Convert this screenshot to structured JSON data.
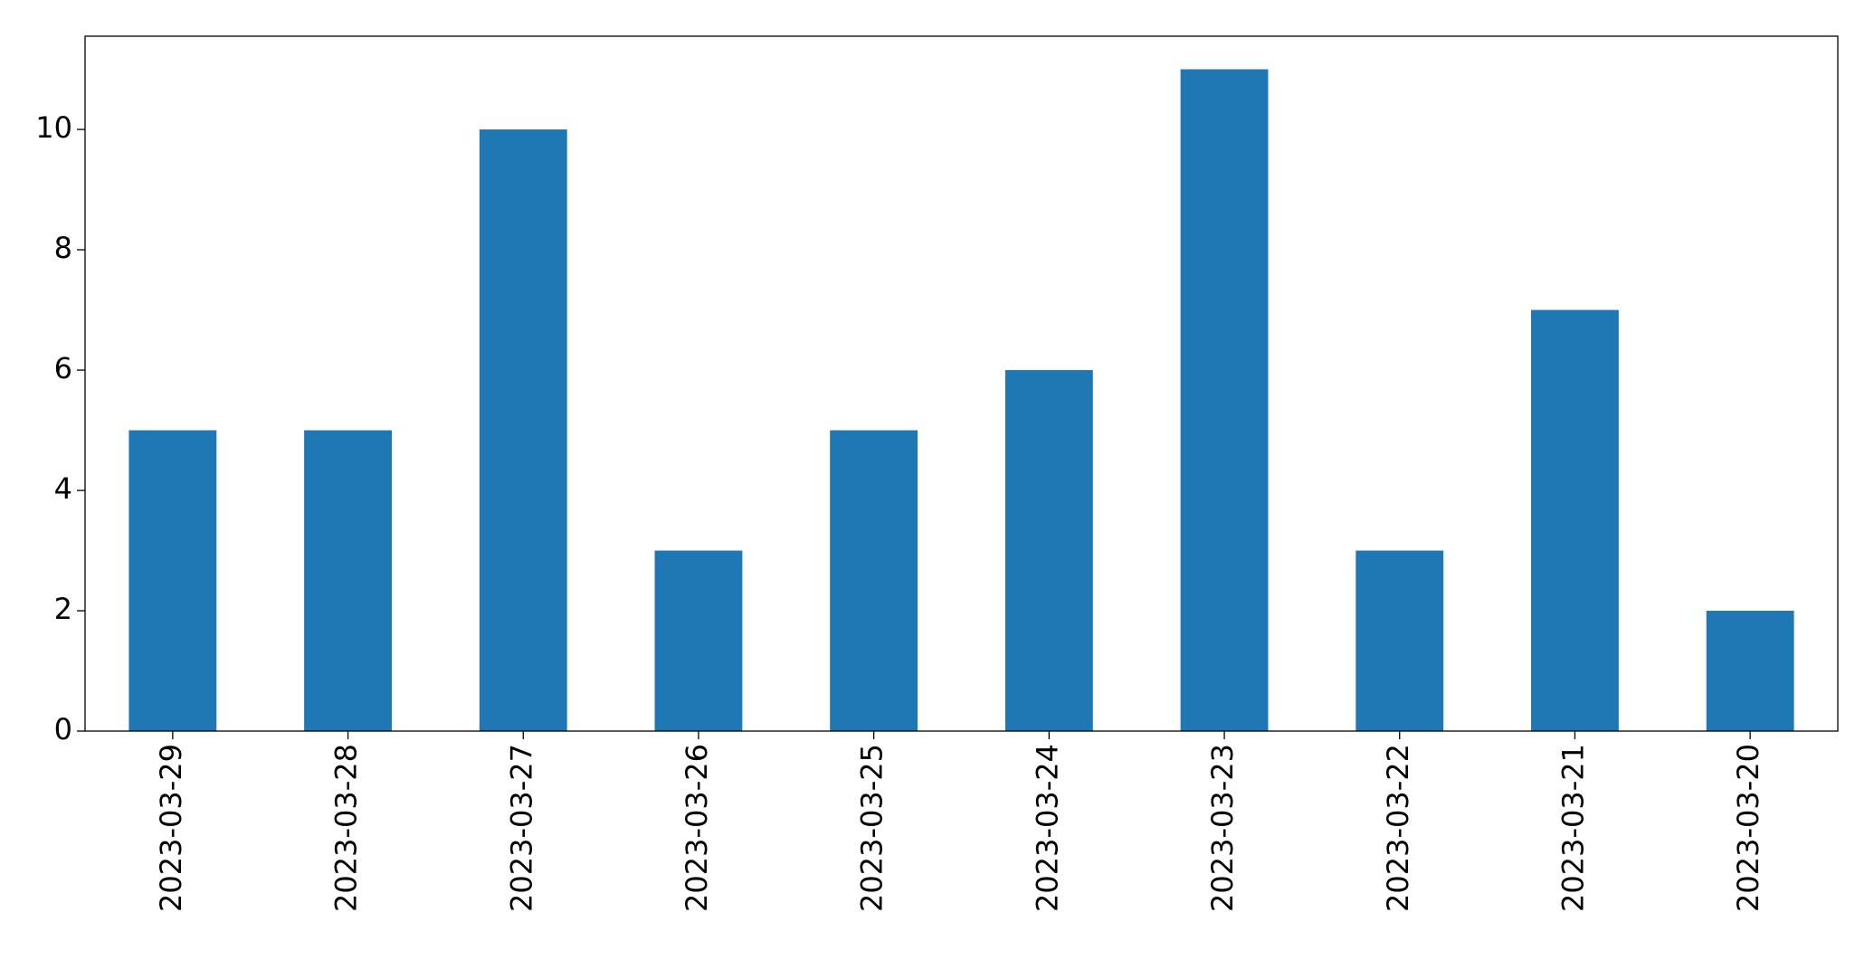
{
  "chart_data": {
    "type": "bar",
    "categories": [
      "2023-03-29",
      "2023-03-28",
      "2023-03-27",
      "2023-03-26",
      "2023-03-25",
      "2023-03-24",
      "2023-03-23",
      "2023-03-22",
      "2023-03-21",
      "2023-03-20"
    ],
    "values": [
      5,
      5,
      10,
      3,
      5,
      6,
      11,
      3,
      7,
      2
    ],
    "color": "#1f77b4",
    "ylim": [
      0,
      11.55
    ],
    "yticks": [
      0,
      2,
      4,
      6,
      8,
      10
    ],
    "grid": false
  }
}
